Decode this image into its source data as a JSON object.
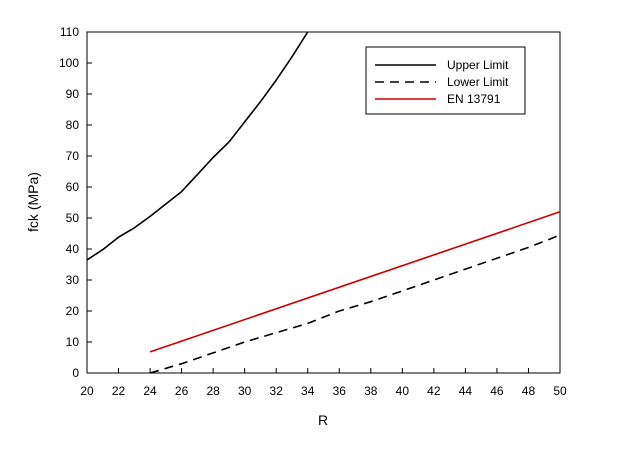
{
  "chart_data": {
    "type": "line",
    "title": "",
    "xlabel": "R",
    "ylabel": "fck (MPa)",
    "xlim": [
      20,
      50
    ],
    "ylim": [
      0,
      110
    ],
    "x_ticks": [
      20,
      22,
      24,
      26,
      28,
      30,
      32,
      34,
      36,
      38,
      40,
      42,
      44,
      46,
      48,
      50
    ],
    "y_ticks": [
      0,
      10,
      20,
      30,
      40,
      50,
      60,
      70,
      80,
      90,
      100,
      110
    ],
    "grid": false,
    "legend_position": "top-right",
    "series": [
      {
        "name": "Upper Limit",
        "color": "#000000",
        "dash": "solid",
        "x": [
          20,
          21,
          22,
          23,
          24,
          25,
          26,
          27,
          28,
          29,
          30,
          31,
          32,
          33,
          34
        ],
        "y": [
          36.5,
          39.8,
          43.8,
          46.8,
          50.5,
          54.5,
          58.5,
          64.0,
          69.5,
          74.5,
          81.0,
          87.5,
          94.5,
          102.0,
          110.0
        ]
      },
      {
        "name": "Lower Limit",
        "color": "#000000",
        "dash": "dashed",
        "x": [
          24,
          26,
          28,
          30,
          32,
          34,
          36,
          38,
          40,
          42,
          44,
          46,
          48,
          50
        ],
        "y": [
          0,
          3.0,
          6.5,
          10.0,
          13.0,
          16.0,
          20.0,
          23.0,
          26.5,
          30.0,
          33.5,
          37.0,
          40.5,
          44.5
        ]
      },
      {
        "name": "EN 13791",
        "color": "#cc0000",
        "dash": "solid",
        "x": [
          24,
          50
        ],
        "y": [
          6.8,
          52.0
        ]
      }
    ]
  }
}
